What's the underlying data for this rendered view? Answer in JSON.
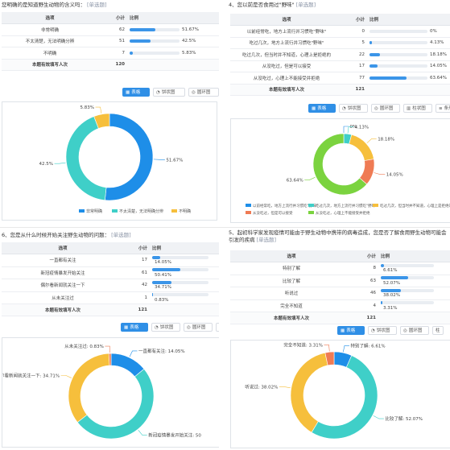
{
  "q_left_top": {
    "title": "您明确的是知道野生动物的含义吗：",
    "tag": "[单选题]",
    "headers": [
      "选项",
      "小计",
      "比例"
    ],
    "rows": [
      {
        "option": "非常明确",
        "count": "62",
        "pct": "51.67%",
        "ratio": 0.5167
      },
      {
        "option": "不太清楚，无法明确分辨",
        "count": "51",
        "pct": "42.5%",
        "ratio": 0.425
      },
      {
        "option": "不明确",
        "count": "7",
        "pct": "5.83%",
        "ratio": 0.0583
      }
    ],
    "total_label": "本题有效填写人次",
    "total": "120",
    "buttons": [
      "表格",
      "饼状图",
      "圆环图"
    ]
  },
  "q4": {
    "title": "4、您以前是否食用过\"野味\"",
    "tag": "[单选题]",
    "headers": [
      "选项",
      "小计",
      "比例"
    ],
    "rows": [
      {
        "option": "以前经常吃，地方上流行并习惯吃\"野味\"",
        "count": "0",
        "pct": "0%",
        "ratio": 0
      },
      {
        "option": "吃过几次，地方上流行并习惯吃\"野味\"",
        "count": "5",
        "pct": "4.13%",
        "ratio": 0.0413
      },
      {
        "option": "吃过几次，但当时并不知道，心理上是拒绝的",
        "count": "22",
        "pct": "18.18%",
        "ratio": 0.1818
      },
      {
        "option": "从没吃过，但是可以接受",
        "count": "17",
        "pct": "14.05%",
        "ratio": 0.1405
      },
      {
        "option": "从没吃过，心理上不能接受并拒绝",
        "count": "77",
        "pct": "63.64%",
        "ratio": 0.6364
      }
    ],
    "total_label": "本题有效填写人次",
    "total": "121",
    "buttons": [
      "表格",
      "饼状图",
      "圆环图",
      "柱状图",
      "条形"
    ]
  },
  "q6": {
    "title": "6、您是从什么时候开始关注野生动物的问题：",
    "tag": "[单选题]",
    "headers": [
      "选项",
      "小计",
      "比例"
    ],
    "rows": [
      {
        "option": "一直都有关注",
        "count": "17",
        "pct": "14.05%",
        "ratio": 0.1405
      },
      {
        "option": "新冠疫情暴发开始关注",
        "count": "61",
        "pct": "50.41%",
        "ratio": 0.5041
      },
      {
        "option": "偶尔看新闻就关注一下",
        "count": "42",
        "pct": "34.71%",
        "ratio": 0.3471
      },
      {
        "option": "从未关注过",
        "count": "1",
        "pct": "0.83%",
        "ratio": 0.0083
      }
    ],
    "total_label": "本题有效填写人次",
    "total": "121",
    "buttons": [
      "表格",
      "饼状图",
      "圆环图",
      "柱"
    ]
  },
  "q5": {
    "title": "5、起初科学家发现疫情可能由于野生动物中携带的病毒造成，您是否了解食用野生动物可能会引发的疾病",
    "title2": "疾病",
    "tag": "[单选题]",
    "headers": [
      "选项",
      "小计",
      "比例"
    ],
    "rows": [
      {
        "option": "特别了解",
        "count": "8",
        "pct": "6.61%",
        "ratio": 0.0661
      },
      {
        "option": "比较了解",
        "count": "63",
        "pct": "52.07%",
        "ratio": 0.5207
      },
      {
        "option": "听说过",
        "count": "46",
        "pct": "38.02%",
        "ratio": 0.3802
      },
      {
        "option": "完全不知道",
        "count": "4",
        "pct": "3.31%",
        "ratio": 0.0331
      }
    ],
    "total_label": "本题有效填写人次",
    "total": "121",
    "buttons": [
      "表格",
      "饼状图",
      "圆环图",
      "柱"
    ]
  },
  "chart_data": [
    {
      "type": "pie",
      "donut": true,
      "categories": [
        "非常明确",
        "不太清楚，无法明确分辨",
        "不明确"
      ],
      "values": [
        51.67,
        42.5,
        5.83
      ],
      "value_labels": [
        "51.67%",
        "42.5%",
        "5.83%"
      ],
      "colors": [
        "#1e8ee8",
        "#3fcfc8",
        "#f6bf3c"
      ],
      "legend": "bottom"
    },
    {
      "type": "pie",
      "donut": true,
      "categories": [
        "以前经常吃，地方上流行并习惯吃\"野味\"",
        "吃过几次，地方上流行并习惯吃\"野味\"",
        "吃过几次，但当时并不知道，心理上是拒绝的",
        "从没吃过，但是可以接受",
        "从没吃过，心理上不能接受并拒绝"
      ],
      "values": [
        0,
        4.13,
        18.18,
        14.05,
        63.64
      ],
      "value_labels": [
        "0%",
        "4.13%",
        "18.18%",
        "14.05%",
        "63.64%"
      ],
      "colors": [
        "#1e8ee8",
        "#3fcfc8",
        "#f6bf3c",
        "#ef7b54",
        "#7bd33f"
      ],
      "legend": "bottom"
    },
    {
      "type": "pie",
      "donut": true,
      "categories": [
        "一直都有关注",
        "新冠疫情暴发开始关注",
        "偶尔看新闻就关注一下",
        "从未关注过"
      ],
      "values": [
        14.05,
        50.41,
        34.71,
        0.83
      ],
      "value_labels": [
        "一直都有关注: 14.05%",
        "新冠疫情暴发开始关注: 50",
        "偶尔看新闻就关注一下: 34.71%",
        "从未关注过: 0.83%"
      ],
      "colors": [
        "#1e8ee8",
        "#3fcfc8",
        "#f6bf3c",
        "#ef7b54"
      ],
      "legend": "none"
    },
    {
      "type": "pie",
      "donut": true,
      "categories": [
        "特别了解",
        "比较了解",
        "听说过",
        "完全不知道"
      ],
      "values": [
        6.61,
        52.07,
        38.02,
        3.31
      ],
      "value_labels": [
        "特别了解: 6.61%",
        "比较了解: 52.07%",
        "听说过: 38.02%",
        "完全不知道: 3.31%"
      ],
      "colors": [
        "#1e8ee8",
        "#3fcfc8",
        "#f6bf3c",
        "#ef7b54"
      ],
      "legend": "none"
    }
  ]
}
